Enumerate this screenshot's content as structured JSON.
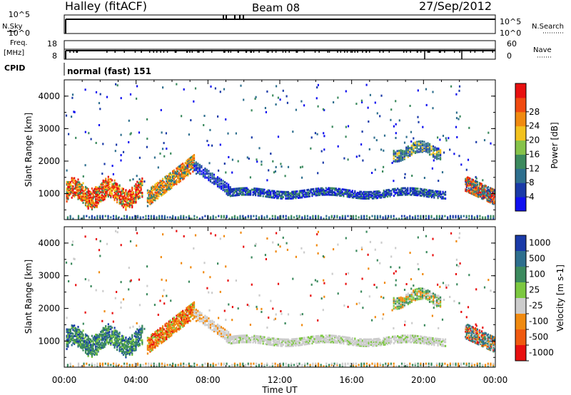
{
  "header": {
    "station": "Halley (fitACF)",
    "beam": "Beam 08",
    "date": "27/Sep/2012"
  },
  "left_labels": {
    "nsky": "N.Sky",
    "freq": "Freq.",
    "freq_unit": "[MHz]",
    "cpid": "CPID"
  },
  "right_labels": {
    "nsearch": "N.Search",
    "nave": "Nave"
  },
  "cpid_text": "normal (fast) 151",
  "chart_data": [
    {
      "type": "line",
      "name": "noise-panel",
      "y_ticks_left": [
        "10^5",
        "10^0"
      ],
      "y_ticks_right": [
        "10^5",
        "10^0"
      ],
      "series": [
        {
          "name": "N.Sky",
          "style": "solid"
        },
        {
          "name": "N.Search",
          "style": "dotted"
        }
      ]
    },
    {
      "type": "line",
      "name": "frequency-panel",
      "y_ticks_left": [
        "18",
        "8"
      ],
      "y_ticks_right": [
        "60",
        "0"
      ],
      "series": [
        {
          "name": "Freq.",
          "style": "solid"
        },
        {
          "name": "Nave",
          "style": "dotted"
        }
      ]
    },
    {
      "type": "heatmap",
      "name": "power-panel",
      "ylabel": "Slant Range [km]",
      "ylim": [
        200,
        4500
      ],
      "y_ticks": [
        1000,
        2000,
        3000,
        4000
      ],
      "xlim": [
        0,
        24
      ],
      "colorbar_label": "Power [dB]",
      "colorbar_ticks": [
        "4",
        "8",
        "12",
        "16",
        "20",
        "24",
        "28"
      ],
      "colorscale": [
        "#1010f0",
        "#1a3aa8",
        "#2e6f8e",
        "#3c8a5e",
        "#86c34a",
        "#f2c21e",
        "#f08a10",
        "#f04a10",
        "#e81010"
      ]
    },
    {
      "type": "heatmap",
      "name": "velocity-panel",
      "ylabel": "Slant Range [km]",
      "xlabel": "Time UT",
      "ylim": [
        200,
        4500
      ],
      "y_ticks": [
        1000,
        2000,
        3000,
        4000
      ],
      "xlim": [
        0,
        24
      ],
      "x_ticks": [
        "00:00",
        "04:00",
        "08:00",
        "12:00",
        "16:00",
        "20:00",
        "00:00"
      ],
      "colorbar_label": "Velocity [m s-1]",
      "colorbar_ticks": [
        "1000",
        "500",
        "100",
        "25",
        "-25",
        "-100",
        "-500",
        "-1000"
      ],
      "colorscale": [
        "#1a3aa8",
        "#2e6f8e",
        "#3c8a5e",
        "#7cc840",
        "#cccccc",
        "#f08a10",
        "#f05a10",
        "#e81010"
      ]
    }
  ]
}
